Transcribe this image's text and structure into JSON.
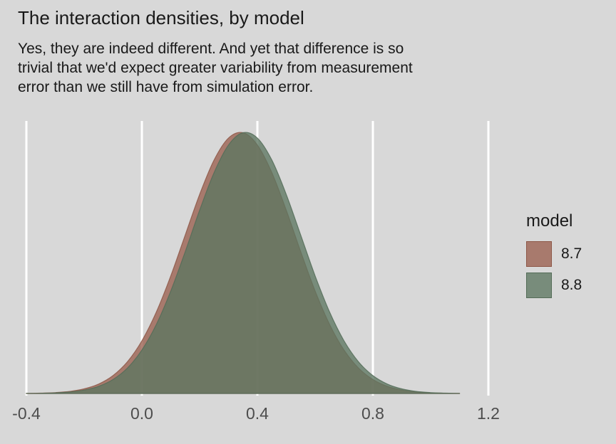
{
  "title": "The interaction densities, by model",
  "subtitle_lines": [
    "Yes, they are indeed different. And yet that difference is so",
    "trivial that we'd expect greater variability from measurement",
    "error than we still have from simulation error."
  ],
  "colors": {
    "background": "#d8d8d8",
    "gridline": "#ffffff",
    "axis_text": "#4d4d4d",
    "title_text": "#191919"
  },
  "legend": {
    "title": "model",
    "entries": [
      {
        "label": "8.7",
        "fill": "#9a5f4e",
        "stroke": "#8d5747",
        "fill_opacity": 0.78
      },
      {
        "label": "8.8",
        "fill": "#5c7660",
        "stroke": "#546c58",
        "fill_opacity": 0.78
      }
    ]
  },
  "chart_data": {
    "type": "area",
    "title": "The interaction densities, by model",
    "subtitle": "Yes, they are indeed different. And yet that difference is so trivial that we'd expect greater variability from measurement error than we still have from simulation error.",
    "xlabel": "",
    "ylabel": "",
    "legend_title": "model",
    "legend_position": "right",
    "grid": "vertical-major-only",
    "xlim": [
      -0.49,
      1.29
    ],
    "ylim": [
      0,
      1.07
    ],
    "x_ticks": [
      -0.4,
      0.0,
      0.4,
      0.8,
      1.2
    ],
    "x_tick_labels": [
      "-0.4",
      "0.0",
      "0.4",
      "0.8",
      "1.2"
    ],
    "x": [
      -0.4,
      -0.35,
      -0.3,
      -0.25,
      -0.2,
      -0.15,
      -0.1,
      -0.05,
      0.0,
      0.05,
      0.1,
      0.15,
      0.2,
      0.25,
      0.3,
      0.35,
      0.4,
      0.45,
      0.5,
      0.55,
      0.6,
      0.65,
      0.7,
      0.75,
      0.8,
      0.85,
      0.9,
      0.95,
      1.0,
      1.05,
      1.1
    ],
    "series": [
      {
        "name": "8.7",
        "mean": 0.34,
        "sd": 0.19,
        "fill": "#9a5f4e",
        "stroke": "#8d5747",
        "fill_opacity": 0.78,
        "values": [
          0.0005,
          0.0014,
          0.0034,
          0.008,
          0.0176,
          0.036,
          0.0685,
          0.1216,
          0.2017,
          0.3119,
          0.4502,
          0.6065,
          0.7622,
          0.8939,
          0.9781,
          0.9986,
          0.9514,
          0.8457,
          0.7015,
          0.5429,
          0.3921,
          0.2642,
          0.1661,
          0.0975,
          0.0534,
          0.0273,
          0.013,
          0.0058,
          0.0024,
          0.0009,
          0.0003
        ]
      },
      {
        "name": "8.8",
        "mean": 0.36,
        "sd": 0.19,
        "fill": "#5c7660",
        "stroke": "#546c58",
        "fill_opacity": 0.78,
        "values": [
          0.0003,
          0.0009,
          0.0024,
          0.0058,
          0.013,
          0.0273,
          0.0534,
          0.0975,
          0.1661,
          0.2642,
          0.3921,
          0.5429,
          0.7015,
          0.8457,
          0.9514,
          0.9986,
          0.9781,
          0.8939,
          0.7622,
          0.6065,
          0.4502,
          0.3119,
          0.2017,
          0.1216,
          0.0685,
          0.036,
          0.0176,
          0.008,
          0.0034,
          0.0014,
          0.0005
        ]
      }
    ]
  }
}
